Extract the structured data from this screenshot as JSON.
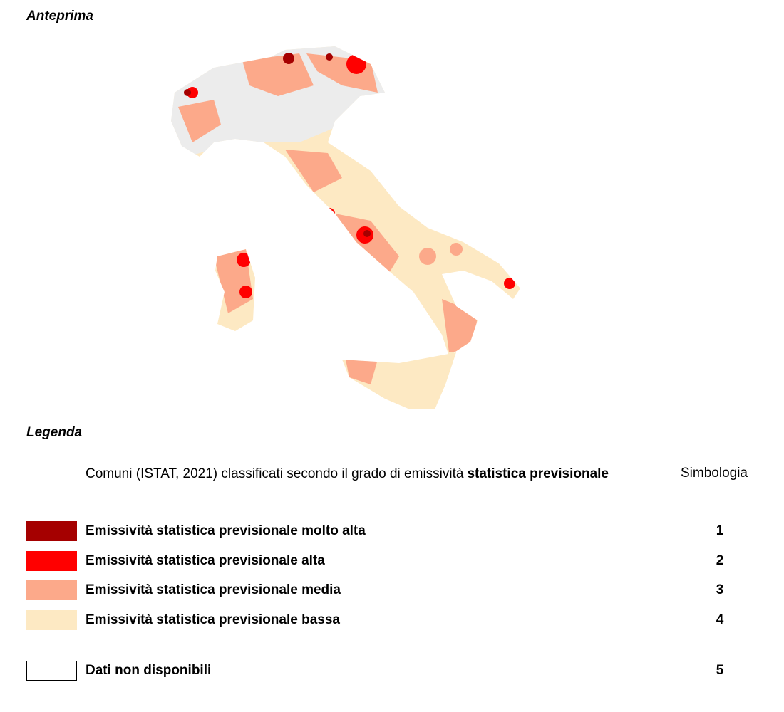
{
  "header": {
    "title": "Anteprima"
  },
  "legend": {
    "title": "Legenda",
    "description": "Comuni (ISTAT, 2021) classificati secondo il grado di emissività",
    "description_bold": "statistica previsionale",
    "symbol_header": "Simbologia",
    "items": [
      {
        "label": "Emissività statistica previsionale molto alta",
        "symbol": 1,
        "color": "#a50000"
      },
      {
        "label": "Emissività statistica previsionale alta",
        "symbol": 2,
        "color": "#ff0000"
      },
      {
        "label": "Emissività statistica previsionale media",
        "symbol": 3,
        "color": "#fca98a"
      },
      {
        "label": "Emissività statistica previsionale bassa",
        "symbol": 4,
        "color": "#fde9c3"
      },
      {
        "label": "Dati non disponibili",
        "symbol": 5,
        "color": "#ffffff"
      }
    ]
  }
}
